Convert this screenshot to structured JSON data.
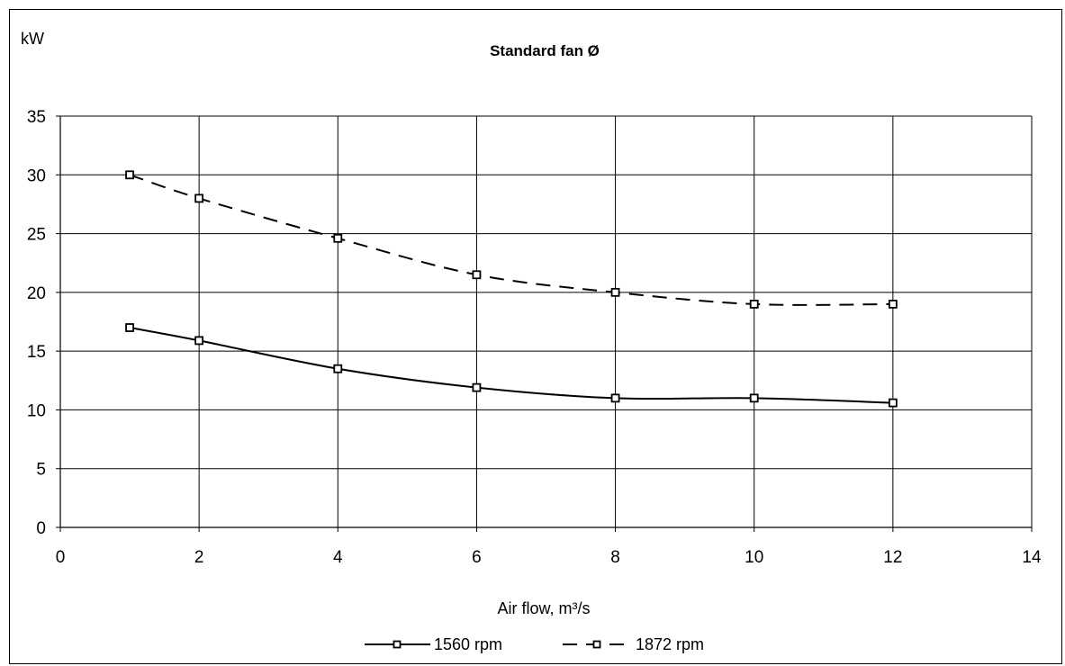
{
  "chart_data": {
    "type": "line",
    "title": "Standard fan Ø",
    "xlabel": "Air flow, m³/s",
    "ylabel": "kW",
    "xlim": [
      0,
      14
    ],
    "ylim": [
      0,
      35
    ],
    "xticks": [
      "0",
      "2",
      "4",
      "6",
      "8",
      "10",
      "12",
      "14"
    ],
    "yticks": [
      "0",
      "5",
      "10",
      "15",
      "20",
      "25",
      "30",
      "35"
    ],
    "grid": true,
    "legend_position": "bottom",
    "series": [
      {
        "name": "1560 rpm",
        "style": "solid",
        "marker": "square",
        "x": [
          1,
          2,
          4,
          6,
          8,
          10,
          12
        ],
        "y": [
          17,
          15.9,
          13.5,
          11.9,
          11,
          11,
          10.6
        ]
      },
      {
        "name": "1872 rpm",
        "style": "dashed",
        "marker": "square",
        "x": [
          1,
          2,
          4,
          6,
          8,
          10,
          12
        ],
        "y": [
          30,
          28,
          24.6,
          21.5,
          20,
          19,
          19
        ]
      }
    ]
  }
}
